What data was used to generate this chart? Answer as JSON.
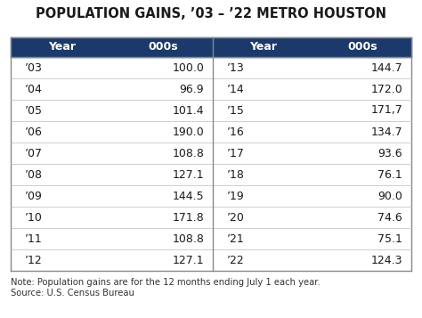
{
  "title": "POPULATION GAINS, ’03 – ’22 METRO HOUSTON",
  "header_bg": "#1b3a6b",
  "header_fg": "#ffffff",
  "text_color": "#1a1a1a",
  "note_text": "Note: Population gains are for the 12 months ending July 1 each year.\nSource: U.S. Census Bureau",
  "left_years": [
    "’03",
    "’04",
    "’05",
    "’06",
    "’07",
    "’08",
    "’09",
    "’10",
    "’11",
    "’12"
  ],
  "left_values": [
    "100.0",
    "96.9",
    "101.4",
    "190.0",
    "108.8",
    "127.1",
    "144.5",
    "171.8",
    "108.8",
    "127.1"
  ],
  "right_years": [
    "’13",
    "’14",
    "’15",
    "’16",
    "’17",
    "’18",
    "’19",
    "’20",
    "’21",
    "’22"
  ],
  "right_values": [
    "144.7",
    "172.0",
    "171,7",
    "134.7",
    "93.6",
    "76.1",
    "90.0",
    "74.6",
    "75.1",
    "124.3"
  ],
  "col_headers": [
    "Year",
    "000s",
    "Year",
    "000s"
  ],
  "fig_w": 4.74,
  "fig_h": 3.57,
  "dpi": 100
}
